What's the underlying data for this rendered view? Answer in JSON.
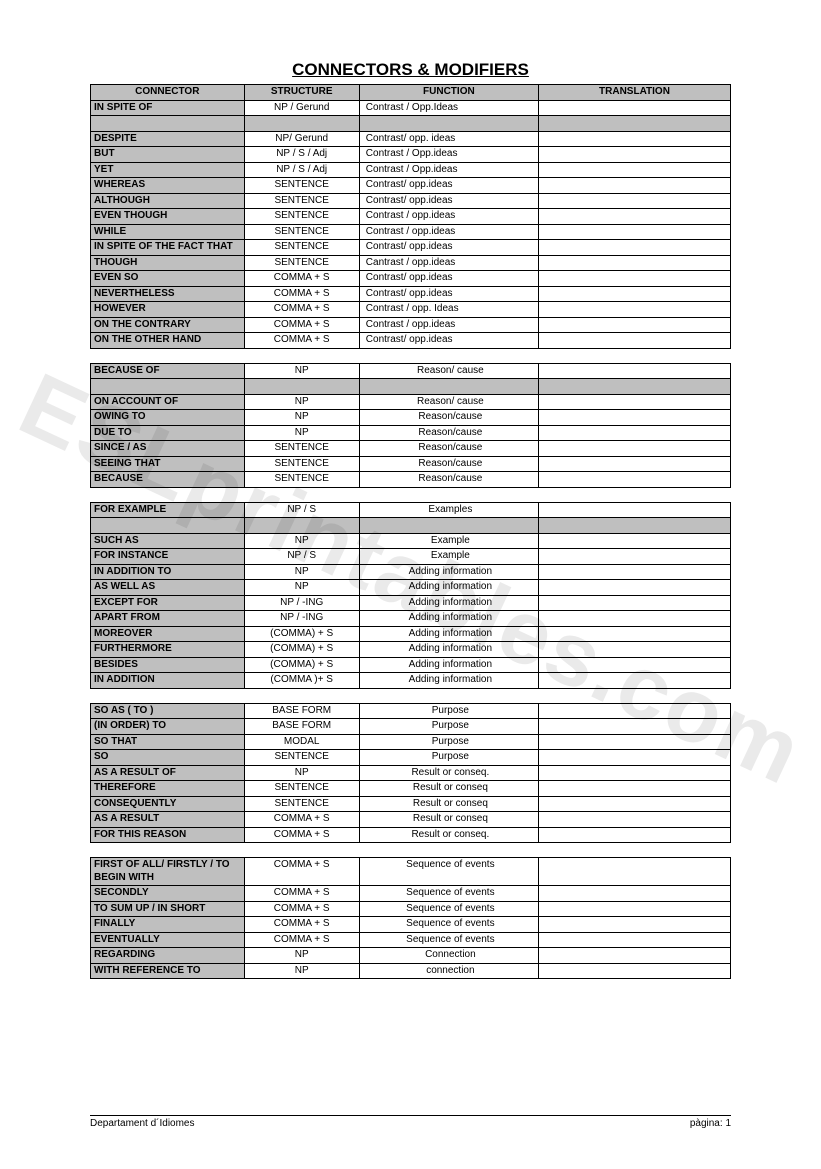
{
  "title": "CONNECTORS & MODIFIERS",
  "headers": {
    "connector": "CONNECTOR",
    "structure": "STRUCTURE",
    "function": "FUNCTION",
    "translation": "TRANSLATION"
  },
  "watermark": "ESLprintables.com",
  "footer": {
    "left": "Departament d´Idiomes",
    "right_label": "pàgina:",
    "right_value": "1"
  },
  "tables": [
    {
      "hasHeader": true,
      "functionAlign": "left",
      "rows": [
        {
          "c": "IN SPITE OF",
          "s": "NP / Gerund",
          "f": "Contrast / Opp.Ideas",
          "t": ""
        },
        {
          "spacer": true
        },
        {
          "c": "DESPITE",
          "s": "NP/ Gerund",
          "f": "Contrast/ opp. ideas",
          "t": ""
        },
        {
          "c": "BUT",
          "s": "NP / S / Adj",
          "f": "Contrast / Opp.ideas",
          "t": ""
        },
        {
          "c": "YET",
          "s": "NP / S / Adj",
          "f": "Contrast / Opp.ideas",
          "t": ""
        },
        {
          "c": "WHEREAS",
          "s": "SENTENCE",
          "f": "Contrast/ opp.ideas",
          "t": ""
        },
        {
          "c": "ALTHOUGH",
          "s": "SENTENCE",
          "f": "Contrast/ opp.ideas",
          "t": ""
        },
        {
          "c": "EVEN THOUGH",
          "s": "SENTENCE",
          "f": "Contrast / opp.ideas",
          "t": ""
        },
        {
          "c": "WHILE",
          "s": "SENTENCE",
          "f": "Contrast / opp.ideas",
          "t": ""
        },
        {
          "c": "IN SPITE OF THE FACT THAT",
          "s": "SENTENCE",
          "f": "Contrast/ opp.ideas",
          "t": ""
        },
        {
          "c": "THOUGH",
          "s": "SENTENCE",
          "f": "Cantrast / opp.ideas",
          "t": ""
        },
        {
          "c": "EVEN SO",
          "s": "COMMA + S",
          "f": "Contrast/ opp.ideas",
          "t": ""
        },
        {
          "c": "NEVERTHELESS",
          "s": "COMMA + S",
          "f": "Contrast/ opp.ideas",
          "t": ""
        },
        {
          "c": "HOWEVER",
          "s": "COMMA + S",
          "f": "Contrast / opp. Ideas",
          "t": ""
        },
        {
          "c": "ON THE CONTRARY",
          "s": "COMMA + S",
          "f": "Contrast / opp.ideas",
          "t": ""
        },
        {
          "c": "ON THE OTHER HAND",
          "s": "COMMA + S",
          "f": "Contrast/ opp.ideas",
          "t": ""
        }
      ]
    },
    {
      "hasHeader": false,
      "functionAlign": "center",
      "rows": [
        {
          "c": "BECAUSE OF",
          "s": "NP",
          "f": "Reason/ cause",
          "t": ""
        },
        {
          "spacer": true
        },
        {
          "c": "ON ACCOUNT OF",
          "s": "NP",
          "f": "Reason/ cause",
          "t": ""
        },
        {
          "c": "OWING TO",
          "s": "NP",
          "f": "Reason/cause",
          "t": ""
        },
        {
          "c": "DUE TO",
          "s": "NP",
          "f": "Reason/cause",
          "t": ""
        },
        {
          "c": "SINCE / AS",
          "s": "SENTENCE",
          "f": "Reason/cause",
          "t": ""
        },
        {
          "c": "SEEING THAT",
          "s": "SENTENCE",
          "f": "Reason/cause",
          "t": ""
        },
        {
          "c": "BECAUSE",
          "s": "SENTENCE",
          "f": "Reason/cause",
          "t": ""
        }
      ]
    },
    {
      "hasHeader": false,
      "functionAlign": "center",
      "rows": [
        {
          "c": "FOR EXAMPLE",
          "s": "NP / S",
          "f": "Examples",
          "t": ""
        },
        {
          "spacer": true
        },
        {
          "c": "SUCH AS",
          "s": "NP",
          "f": "Example",
          "t": ""
        },
        {
          "c": "FOR INSTANCE",
          "s": "NP / S",
          "f": "Example",
          "t": ""
        },
        {
          "c": "IN ADDITION TO",
          "s": "NP",
          "f": "Adding information",
          "t": ""
        },
        {
          "c": "AS WELL AS",
          "s": "NP",
          "f": "Adding information",
          "t": ""
        },
        {
          "c": "EXCEPT FOR",
          "s": "NP / -ING",
          "f": "Adding information",
          "t": ""
        },
        {
          "c": "APART FROM",
          "s": "NP / -ING",
          "f": "Adding information",
          "t": ""
        },
        {
          "c": "MOREOVER",
          "s": "(COMMA) + S",
          "f": "Adding information",
          "t": ""
        },
        {
          "c": "FURTHERMORE",
          "s": "(COMMA) + S",
          "f": "Adding information",
          "t": ""
        },
        {
          "c": "BESIDES",
          "s": "(COMMA) + S",
          "f": "Adding information",
          "t": ""
        },
        {
          "c": "IN ADDITION",
          "s": "(COMMA )+ S",
          "f": "Adding information",
          "t": ""
        }
      ]
    },
    {
      "hasHeader": false,
      "functionAlign": "center",
      "rows": [
        {
          "c": "SO AS ( TO )",
          "s": "BASE FORM",
          "f": "Purpose",
          "t": ""
        },
        {
          "c": "(IN ORDER) TO",
          "s": "BASE FORM",
          "f": "Purpose",
          "t": ""
        },
        {
          "c": "SO THAT",
          "s": "MODAL",
          "f": "Purpose",
          "t": ""
        },
        {
          "c": "SO",
          "s": "SENTENCE",
          "f": "Purpose",
          "t": ""
        },
        {
          "c": "AS A RESULT OF",
          "s": "NP",
          "f": "Result or conseq.",
          "t": ""
        },
        {
          "c": "THEREFORE",
          "s": "SENTENCE",
          "f": "Result or conseq",
          "t": ""
        },
        {
          "c": "CONSEQUENTLY",
          "s": "SENTENCE",
          "f": "Result or conseq",
          "t": ""
        },
        {
          "c": "AS A RESULT",
          "s": "COMMA + S",
          "f": "Result or conseq",
          "t": ""
        },
        {
          "c": "FOR THIS REASON",
          "s": "COMMA + S",
          "f": "Result or conseq.",
          "t": ""
        }
      ]
    },
    {
      "hasHeader": false,
      "functionAlign": "center",
      "rows": [
        {
          "c": "FIRST OF ALL/ FIRSTLY / TO BEGIN WITH",
          "s": "COMMA + S",
          "f": "Sequence of events",
          "t": ""
        },
        {
          "c": "SECONDLY",
          "s": "COMMA + S",
          "f": "Sequence of events",
          "t": ""
        },
        {
          "c": "TO SUM UP / IN SHORT",
          "s": "COMMA + S",
          "f": "Sequence of events",
          "t": ""
        },
        {
          "c": "FINALLY",
          "s": "COMMA + S",
          "f": "Sequence of events",
          "t": ""
        },
        {
          "c": "EVENTUALLY",
          "s": "COMMA + S",
          "f": "Sequence of events",
          "t": ""
        },
        {
          "c": "REGARDING",
          "s": "NP",
          "f": "Connection",
          "t": ""
        },
        {
          "c": "WITH REFERENCE TO",
          "s": "NP",
          "f": "connection",
          "t": ""
        }
      ]
    }
  ]
}
